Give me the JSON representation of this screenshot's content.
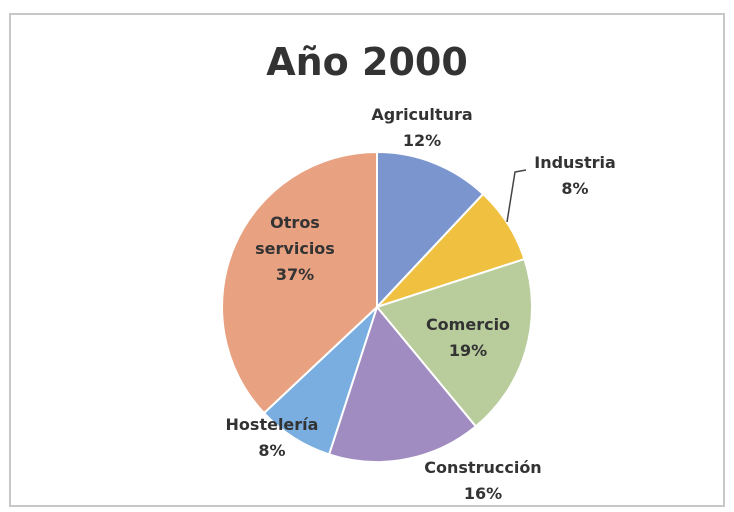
{
  "chart_data": {
    "type": "pie",
    "title": "Año 2000",
    "categories": [
      "Agricultura",
      "Industria",
      "Comercio",
      "Construcción",
      "Hostelería",
      "Otros servicios"
    ],
    "values": [
      12,
      8,
      19,
      16,
      8,
      37
    ],
    "value_labels": [
      "12%",
      "8%",
      "19%",
      "16%",
      "8%",
      "37%"
    ],
    "colors": [
      "#7b96cf",
      "#f0c040",
      "#b8cc9c",
      "#a08cc0",
      "#7aaee0",
      "#e8a282"
    ]
  }
}
